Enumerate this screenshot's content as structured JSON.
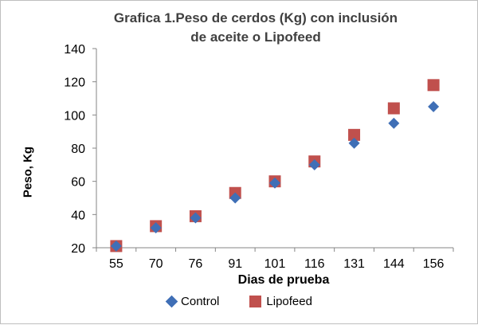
{
  "chart_data": {
    "type": "scatter",
    "title_line1": "Grafica 1.Peso de cerdos (Kg) con inclusión",
    "title_line2": "de aceite o Lipofeed",
    "xlabel": "Dias de prueba",
    "ylabel": "Peso, Kg",
    "categories": [
      "55",
      "70",
      "76",
      "91",
      "101",
      "116",
      "131",
      "144",
      "156"
    ],
    "ylim": [
      20,
      140
    ],
    "yticks": [
      20,
      40,
      60,
      80,
      100,
      120,
      140
    ],
    "grid": false,
    "legend_position": "bottom",
    "series": [
      {
        "name": "Control",
        "marker": "diamond",
        "color": "#3f6fb6",
        "values": [
          21,
          32,
          38,
          50,
          59,
          70,
          83,
          95,
          105
        ]
      },
      {
        "name": "Lipofeed",
        "marker": "square",
        "color": "#c0504d",
        "values": [
          21,
          33,
          39,
          53,
          60,
          72,
          88,
          104,
          118
        ]
      }
    ]
  }
}
